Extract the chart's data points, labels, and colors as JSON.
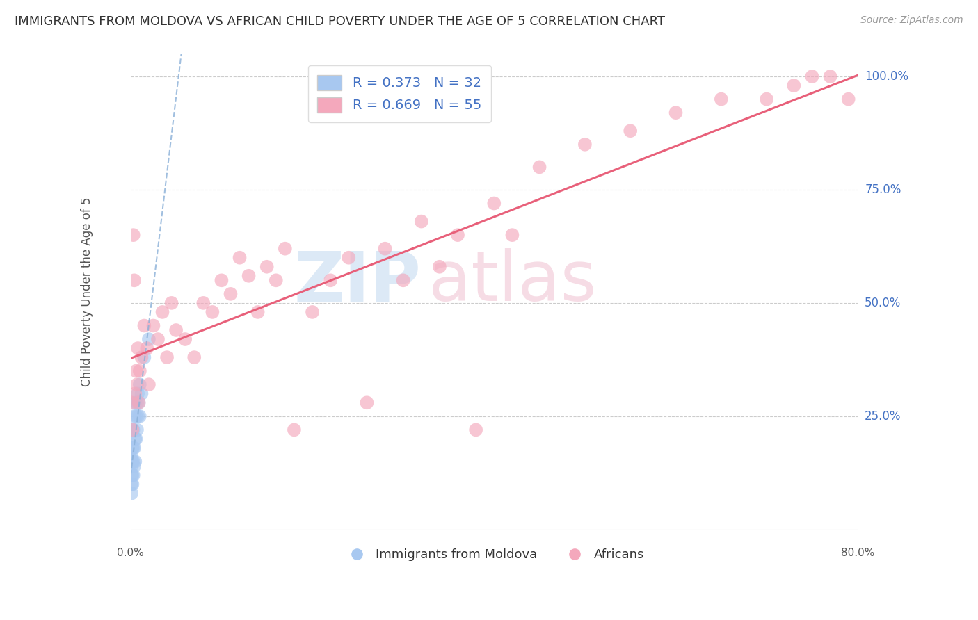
{
  "title": "IMMIGRANTS FROM MOLDOVA VS AFRICAN CHILD POVERTY UNDER THE AGE OF 5 CORRELATION CHART",
  "source": "Source: ZipAtlas.com",
  "ylabel": "Child Poverty Under the Age of 5",
  "xlim": [
    0.0,
    0.8
  ],
  "ylim": [
    0.0,
    1.05
  ],
  "yticks": [
    0.25,
    0.5,
    0.75,
    1.0
  ],
  "yticklabels": [
    "25.0%",
    "50.0%",
    "75.0%",
    "100.0%"
  ],
  "legend1_r": "0.373",
  "legend1_n": "32",
  "legend2_r": "0.669",
  "legend2_n": "55",
  "legend_bottom_label1": "Immigrants from Moldova",
  "legend_bottom_label2": "Africans",
  "blue_scatter_color": "#a8c8f0",
  "pink_scatter_color": "#f4a8bc",
  "blue_line_color": "#8ab0d8",
  "pink_line_color": "#e8607a",
  "watermark_zip_color": "#c0d8f0",
  "watermark_atlas_color": "#f0c0d0",
  "blue_scatter_x": [
    0.001,
    0.001,
    0.001,
    0.001,
    0.001,
    0.002,
    0.002,
    0.002,
    0.002,
    0.002,
    0.003,
    0.003,
    0.003,
    0.003,
    0.004,
    0.004,
    0.004,
    0.005,
    0.005,
    0.005,
    0.006,
    0.006,
    0.007,
    0.007,
    0.008,
    0.008,
    0.009,
    0.01,
    0.01,
    0.012,
    0.015,
    0.02
  ],
  "blue_scatter_y": [
    0.08,
    0.1,
    0.12,
    0.14,
    0.16,
    0.1,
    0.12,
    0.15,
    0.18,
    0.22,
    0.12,
    0.15,
    0.18,
    0.22,
    0.14,
    0.18,
    0.25,
    0.15,
    0.2,
    0.28,
    0.2,
    0.25,
    0.22,
    0.28,
    0.25,
    0.3,
    0.28,
    0.25,
    0.32,
    0.3,
    0.38,
    0.42
  ],
  "pink_scatter_x": [
    0.001,
    0.002,
    0.003,
    0.004,
    0.005,
    0.006,
    0.007,
    0.008,
    0.009,
    0.01,
    0.012,
    0.015,
    0.018,
    0.02,
    0.025,
    0.03,
    0.035,
    0.04,
    0.045,
    0.05,
    0.06,
    0.07,
    0.08,
    0.09,
    0.1,
    0.11,
    0.12,
    0.13,
    0.14,
    0.15,
    0.16,
    0.17,
    0.18,
    0.2,
    0.22,
    0.24,
    0.26,
    0.28,
    0.3,
    0.32,
    0.34,
    0.36,
    0.38,
    0.4,
    0.42,
    0.45,
    0.5,
    0.55,
    0.6,
    0.65,
    0.7,
    0.73,
    0.75,
    0.77,
    0.79
  ],
  "pink_scatter_y": [
    0.28,
    0.22,
    0.65,
    0.55,
    0.3,
    0.35,
    0.32,
    0.4,
    0.28,
    0.35,
    0.38,
    0.45,
    0.4,
    0.32,
    0.45,
    0.42,
    0.48,
    0.38,
    0.5,
    0.44,
    0.42,
    0.38,
    0.5,
    0.48,
    0.55,
    0.52,
    0.6,
    0.56,
    0.48,
    0.58,
    0.55,
    0.62,
    0.22,
    0.48,
    0.55,
    0.6,
    0.28,
    0.62,
    0.55,
    0.68,
    0.58,
    0.65,
    0.22,
    0.72,
    0.65,
    0.8,
    0.85,
    0.88,
    0.92,
    0.95,
    0.95,
    0.98,
    1.0,
    1.0,
    0.95
  ]
}
